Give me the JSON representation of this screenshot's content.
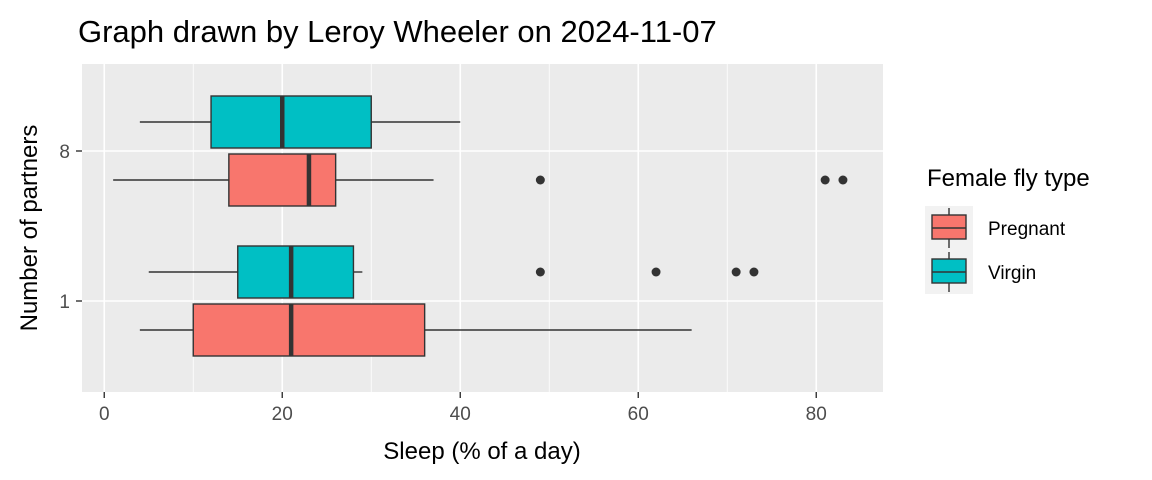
{
  "chart_data": {
    "type": "boxplot",
    "orientation": "horizontal",
    "title": "Graph drawn by Leroy Wheeler on 2024-11-07",
    "xlabel": "Sleep (% of a day)",
    "ylabel": "Number of partners",
    "xlim": [
      -2.5,
      87.5
    ],
    "x_ticks": [
      0,
      20,
      40,
      60,
      80
    ],
    "x_tick_labels": [
      "0",
      "20",
      "40",
      "60",
      "80"
    ],
    "categories": [
      "1",
      "8"
    ],
    "grid": true,
    "legend": {
      "title": "Female fly type",
      "position": "right",
      "entries": [
        "Pregnant",
        "Virgin"
      ]
    },
    "colors": {
      "Pregnant": "#F8766D",
      "Virgin": "#00BFC4",
      "panel": "#EBEBEB",
      "grid": "#FFFFFF",
      "line": "#333333"
    },
    "series": [
      {
        "name": "Pregnant",
        "boxes": [
          {
            "category": "1",
            "min": 4,
            "q1": 10,
            "median": 21,
            "q3": 36,
            "max": 66,
            "outliers": []
          },
          {
            "category": "8",
            "min": 1,
            "q1": 14,
            "median": 23,
            "q3": 26,
            "max": 37,
            "outliers": [
              49,
              81,
              83
            ]
          }
        ]
      },
      {
        "name": "Virgin",
        "boxes": [
          {
            "category": "1",
            "min": 5,
            "q1": 15,
            "median": 21,
            "q3": 28,
            "max": 29,
            "outliers": [
              49,
              62,
              71,
              73
            ]
          },
          {
            "category": "8",
            "min": 4,
            "q1": 12,
            "median": 20,
            "q3": 30,
            "max": 40,
            "outliers": []
          }
        ]
      }
    ]
  }
}
